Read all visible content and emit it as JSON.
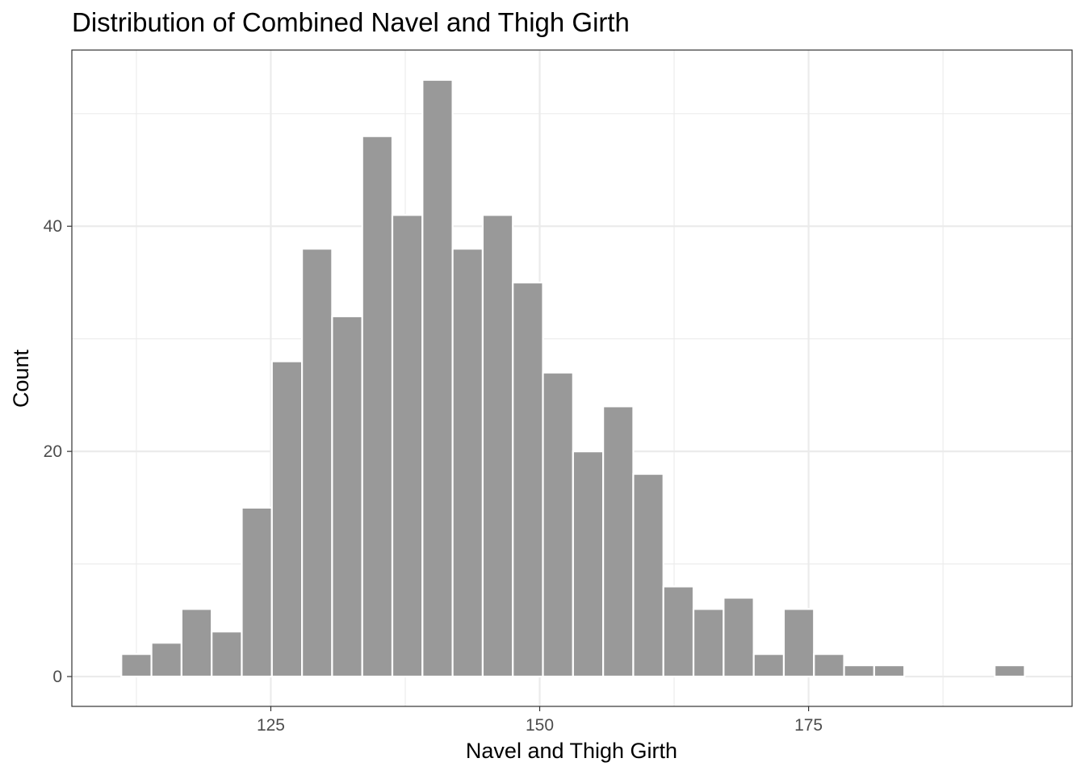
{
  "chart_data": {
    "type": "bar",
    "title": "Distribution of Combined Navel and Thigh Girth",
    "xlabel": "Navel and Thigh Girth",
    "ylabel": "Count",
    "xlim": [
      106.5,
      199.5
    ],
    "ylim": [
      -2.65,
      55.65
    ],
    "x_ticks": [
      125,
      150,
      175
    ],
    "y_ticks": [
      0,
      20,
      40
    ],
    "x_minor_grid": [
      112.5,
      137.5,
      162.5,
      187.5
    ],
    "y_minor_grid": [
      10,
      30,
      50
    ],
    "bin_width": 2.8,
    "bin_centers": [
      112.5,
      115.3,
      118.1,
      120.9,
      123.7,
      126.5,
      129.3,
      132.1,
      134.9,
      137.7,
      140.5,
      143.3,
      146.1,
      148.9,
      151.7,
      154.5,
      157.3,
      160.1,
      162.9,
      165.7,
      168.5,
      171.3,
      174.1,
      176.9,
      179.7,
      182.5,
      185.3,
      188.1,
      190.9,
      193.7
    ],
    "values": [
      2,
      3,
      6,
      4,
      15,
      28,
      38,
      32,
      48,
      41,
      53,
      38,
      41,
      35,
      27,
      20,
      24,
      18,
      8,
      6,
      7,
      2,
      6,
      2,
      1,
      1,
      0,
      0,
      0,
      1
    ],
    "bar_color": "#999999",
    "bar_outline": "#ffffff",
    "grid": true,
    "legend": "none"
  }
}
